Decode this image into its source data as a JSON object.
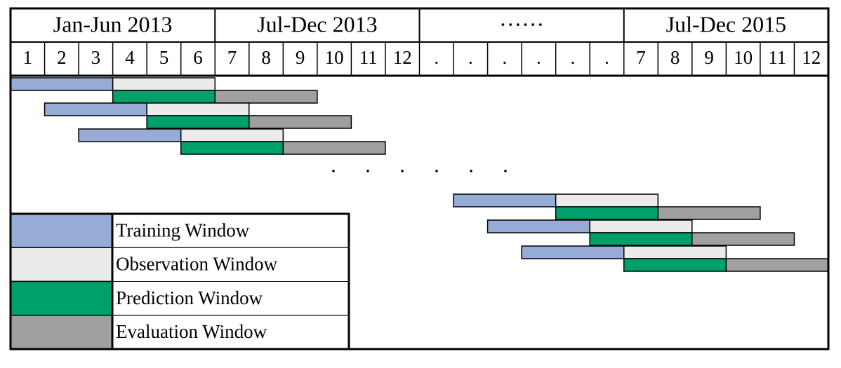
{
  "header": {
    "periods": [
      "Jan-Jun 2013",
      "Jul-Dec 2013",
      "······",
      "Jul-Dec 2015"
    ],
    "months": [
      "1",
      "2",
      "3",
      "4",
      "5",
      "6",
      "7",
      "8",
      "9",
      "10",
      "11",
      "12",
      ".",
      ".",
      ".",
      ".",
      ".",
      ".",
      "7",
      "8",
      "9",
      "10",
      "11",
      "12"
    ]
  },
  "legend": [
    {
      "label": "Training  Window",
      "color": "#97abd7"
    },
    {
      "label": "Observation Window",
      "color": "#ebebeb"
    },
    {
      "label": "Prediction Window",
      "color": "#00a06a"
    },
    {
      "label": "Evaluation Window",
      "color": "#a0a0a0"
    }
  ]
}
